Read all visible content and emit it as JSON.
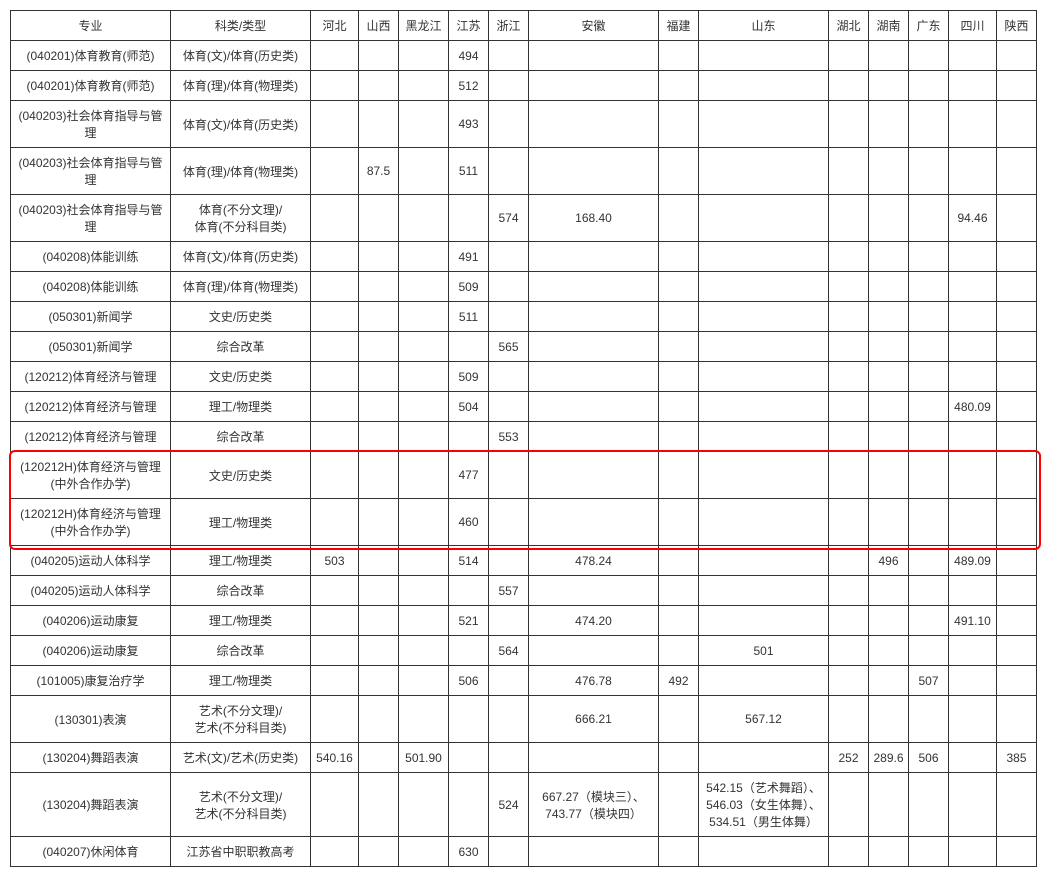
{
  "columns": [
    {
      "label": "专业",
      "width": 160
    },
    {
      "label": "科类/类型",
      "width": 140
    },
    {
      "label": "河北",
      "width": 48
    },
    {
      "label": "山西",
      "width": 40
    },
    {
      "label": "黑龙江",
      "width": 50
    },
    {
      "label": "江苏",
      "width": 40
    },
    {
      "label": "浙江",
      "width": 40
    },
    {
      "label": "安徽",
      "width": 130
    },
    {
      "label": "福建",
      "width": 40
    },
    {
      "label": "山东",
      "width": 130
    },
    {
      "label": "湖北",
      "width": 40
    },
    {
      "label": "湖南",
      "width": 40
    },
    {
      "label": "广东",
      "width": 40
    },
    {
      "label": "四川",
      "width": 48
    },
    {
      "label": "陕西",
      "width": 40
    }
  ],
  "rows": [
    {
      "c0": "(040201)体育教育(师范)",
      "c1": "体育(文)/体育(历史类)",
      "c5": "494"
    },
    {
      "c0": "(040201)体育教育(师范)",
      "c1": "体育(理)/体育(物理类)",
      "c5": "512"
    },
    {
      "c0": "(040203)社会体育指导与管理",
      "c1": "体育(文)/体育(历史类)",
      "c5": "493"
    },
    {
      "c0": "(040203)社会体育指导与管理",
      "c1": "体育(理)/体育(物理类)",
      "c3": "87.5",
      "c5": "511"
    },
    {
      "c0": "(040203)社会体育指导与管理",
      "c1": "体育(不分文理)/\n体育(不分科目类)",
      "c6": "574",
      "c7": "168.40",
      "c13": "94.46",
      "tall": true
    },
    {
      "c0": "(040208)体能训练",
      "c1": "体育(文)/体育(历史类)",
      "c5": "491"
    },
    {
      "c0": "(040208)体能训练",
      "c1": "体育(理)/体育(物理类)",
      "c5": "509"
    },
    {
      "c0": "(050301)新闻学",
      "c1": "文史/历史类",
      "c5": "511"
    },
    {
      "c0": "(050301)新闻学",
      "c1": "综合改革",
      "c6": "565"
    },
    {
      "c0": "(120212)体育经济与管理",
      "c1": "文史/历史类",
      "c5": "509"
    },
    {
      "c0": "(120212)体育经济与管理",
      "c1": "理工/物理类",
      "c5": "504",
      "c13": "480.09"
    },
    {
      "c0": "(120212)体育经济与管理",
      "c1": "综合改革",
      "c6": "553"
    },
    {
      "c0": "(120212H)体育经济与管理\n(中外合作办学)",
      "c1": "文史/历史类",
      "c5": "477",
      "tall": true,
      "hl": true
    },
    {
      "c0": "(120212H)体育经济与管理\n(中外合作办学)",
      "c1": "理工/物理类",
      "c5": "460",
      "tall": true,
      "hl": true
    },
    {
      "c0": "(040205)运动人体科学",
      "c1": "理工/物理类",
      "c2": "503",
      "c5": "514",
      "c7": "478.24",
      "c11": "496",
      "c13": "489.09"
    },
    {
      "c0": "(040205)运动人体科学",
      "c1": "综合改革",
      "c6": "557"
    },
    {
      "c0": "(040206)运动康复",
      "c1": "理工/物理类",
      "c5": "521",
      "c7": "474.20",
      "c13": "491.10"
    },
    {
      "c0": "(040206)运动康复",
      "c1": "综合改革",
      "c6": "564",
      "c9": "501"
    },
    {
      "c0": "(101005)康复治疗学",
      "c1": "理工/物理类",
      "c5": "506",
      "c7": "476.78",
      "c8": "492",
      "c12": "507"
    },
    {
      "c0": "(130301)表演",
      "c1": "艺术(不分文理)/\n艺术(不分科目类)",
      "c7": "666.21",
      "c9": "567.12",
      "tall": true
    },
    {
      "c0": "(130204)舞蹈表演",
      "c1": "艺术(文)/艺术(历史类)",
      "c2": "540.16",
      "c4": "501.90",
      "c10": "252",
      "c11": "289.6",
      "c12": "506",
      "c14": "385"
    },
    {
      "c0": "(130204)舞蹈表演",
      "c1": "艺术(不分文理)/\n艺术(不分科目类)",
      "c6": "524",
      "c7": "667.27（模块三）、\n743.77（模块四）",
      "c9": "542.15（艺术舞蹈）、\n546.03（女生体舞）、\n534.51（男生体舞）",
      "tall": true,
      "xt": true
    },
    {
      "c0": "(040207)休闲体育",
      "c1": "江苏省中职职教高考",
      "c5": "630"
    }
  ],
  "highlight": {
    "border_color": "#ff0000",
    "border_width": 2,
    "border_radius": 6
  },
  "style": {
    "font_size": 12,
    "border_color": "#333333",
    "bg_color": "#ffffff",
    "text_color": "#333333",
    "row_height_normal": 24,
    "row_height_tall": 44,
    "row_height_xtall": 64
  }
}
